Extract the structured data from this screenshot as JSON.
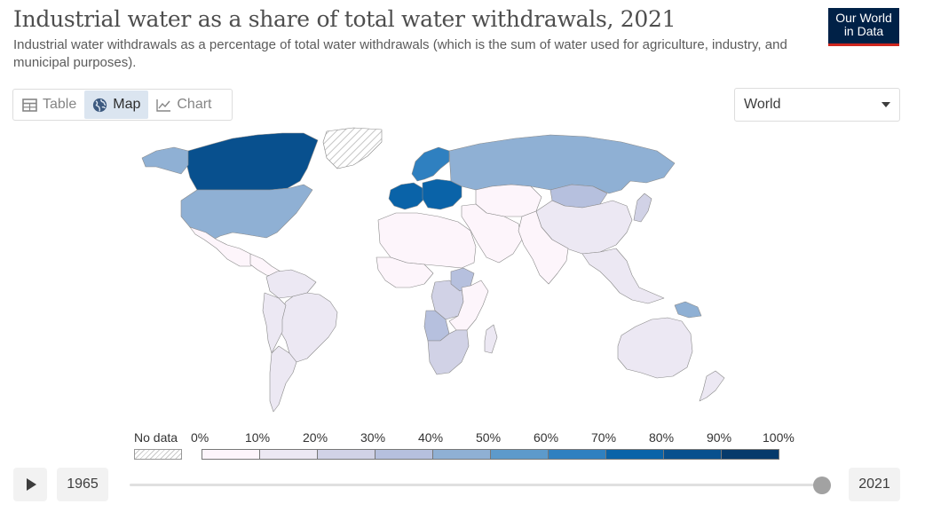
{
  "header": {
    "title": "Industrial water as a share of total water withdrawals, 2021",
    "subtitle": "Industrial water withdrawals as a percentage of total water withdrawals (which is the sum of water used for agriculture, industry, and municipal purposes).",
    "logo_line1": "Our World",
    "logo_line2": "in Data"
  },
  "tabs": [
    {
      "label": "Table",
      "icon": "table-icon",
      "active": false
    },
    {
      "label": "Map",
      "icon": "globe-icon",
      "active": true
    },
    {
      "label": "Chart",
      "icon": "line-chart-icon",
      "active": false
    }
  ],
  "region_select": {
    "value": "World"
  },
  "legend": {
    "nodata_label": "No data",
    "ticks": [
      "0%",
      "10%",
      "20%",
      "30%",
      "40%",
      "50%",
      "60%",
      "70%",
      "80%",
      "90%",
      "100%"
    ],
    "colors": [
      "#fdf5fb",
      "#ece8f3",
      "#d1d2e6",
      "#b6c0de",
      "#8fb0d4",
      "#5d9acb",
      "#2f80c0",
      "#0a63a8",
      "#08508e",
      "#063a6b"
    ]
  },
  "timeline": {
    "start_year": "1965",
    "end_year": "2021",
    "progress": 1.0
  },
  "chart_data": {
    "type": "choropleth",
    "year": 2021,
    "unit": "%",
    "bins": [
      0,
      10,
      20,
      30,
      40,
      50,
      60,
      70,
      80,
      90,
      100
    ],
    "regions": [
      {
        "name": "Canada",
        "bin": 8
      },
      {
        "name": "United States",
        "bin": 4
      },
      {
        "name": "Alaska",
        "bin": 4
      },
      {
        "name": "Greenland",
        "bin": null
      },
      {
        "name": "Mexico",
        "bin": 0
      },
      {
        "name": "Central America",
        "bin": 0
      },
      {
        "name": "Colombia/Venezuela",
        "bin": 1
      },
      {
        "name": "Brazil",
        "bin": 1
      },
      {
        "name": "Andes",
        "bin": 1
      },
      {
        "name": "Southern Cone",
        "bin": 1
      },
      {
        "name": "Scandinavia",
        "bin": 6
      },
      {
        "name": "Western Europe",
        "bin": 7
      },
      {
        "name": "Central Europe",
        "bin": 7
      },
      {
        "name": "Russia",
        "bin": 4
      },
      {
        "name": "Kazakhstan",
        "bin": 0
      },
      {
        "name": "Mongolia",
        "bin": 3
      },
      {
        "name": "China",
        "bin": 1
      },
      {
        "name": "Middle East",
        "bin": 0
      },
      {
        "name": "India",
        "bin": 0
      },
      {
        "name": "Southeast Asia",
        "bin": 1
      },
      {
        "name": "Japan",
        "bin": 2
      },
      {
        "name": "North Africa",
        "bin": 0
      },
      {
        "name": "West Africa",
        "bin": 0
      },
      {
        "name": "DR Congo",
        "bin": 2
      },
      {
        "name": "Angola",
        "bin": 3
      },
      {
        "name": "Ethiopia",
        "bin": 3
      },
      {
        "name": "East Africa",
        "bin": 0
      },
      {
        "name": "Southern Africa",
        "bin": 2
      },
      {
        "name": "Madagascar",
        "bin": 1
      },
      {
        "name": "Australia",
        "bin": 1
      },
      {
        "name": "Papua New Guinea",
        "bin": 4
      },
      {
        "name": "New Zealand",
        "bin": 1
      }
    ]
  }
}
